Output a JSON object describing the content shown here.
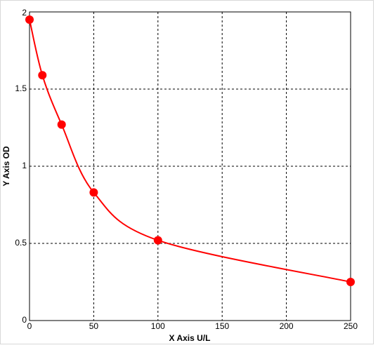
{
  "chart_data": {
    "type": "line",
    "x_label": "X Axis U/L",
    "y_label": "Y Axis OD",
    "x": [
      0,
      10,
      25,
      50,
      100,
      250
    ],
    "series": [
      {
        "color": "#ff0000",
        "values": [
          1.95,
          1.59,
          1.27,
          0.83,
          0.52,
          0.25
        ]
      }
    ],
    "xlim": [
      0,
      250
    ],
    "xticks": [
      0,
      50,
      100,
      150,
      200,
      250
    ],
    "ylim": [
      0,
      2
    ],
    "yticks": [
      0,
      0.5,
      1,
      1.5,
      2
    ],
    "grid": true,
    "markers": true,
    "smooth": true
  }
}
